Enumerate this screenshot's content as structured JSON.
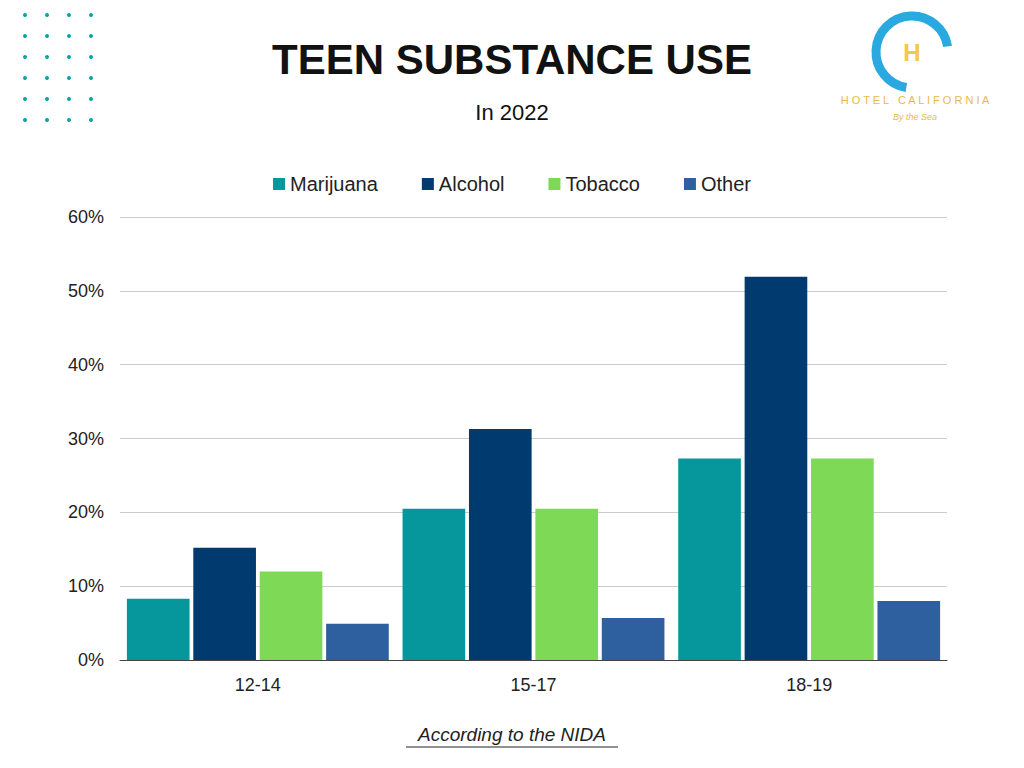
{
  "chart_data": {
    "type": "bar",
    "title": "TEEN SUBSTANCE USE",
    "subtitle": "In 2022",
    "annotations": [
      "According to the NIDA",
      "HOTEL CALIFORNIA",
      "By the Sea",
      "H"
    ],
    "categories": [
      "12-14",
      "15-17",
      "18-19"
    ],
    "series": [
      {
        "name": "Marijuana",
        "color": "#05979b",
        "values": [
          8.3,
          20.5,
          27.3
        ]
      },
      {
        "name": "Alcohol",
        "color": "#003a6e",
        "values": [
          15.2,
          31.3,
          51.9
        ]
      },
      {
        "name": "Tobacco",
        "color": "#7ed957",
        "values": [
          12,
          20.5,
          27.3
        ]
      },
      {
        "name": "Other",
        "color": "#2e5f9e",
        "values": [
          4.9,
          5.7,
          8.0
        ]
      }
    ],
    "ylim": [
      0,
      60
    ],
    "yticks": [
      {
        "value": 0,
        "label": "0%"
      },
      {
        "value": 10,
        "label": "10%"
      },
      {
        "value": 20,
        "label": "20%"
      },
      {
        "value": 30,
        "label": "30%"
      },
      {
        "value": 40,
        "label": "40%"
      },
      {
        "value": 50,
        "label": "50%"
      },
      {
        "value": 60,
        "label": "60%"
      }
    ],
    "grid": true,
    "legend": "top"
  }
}
